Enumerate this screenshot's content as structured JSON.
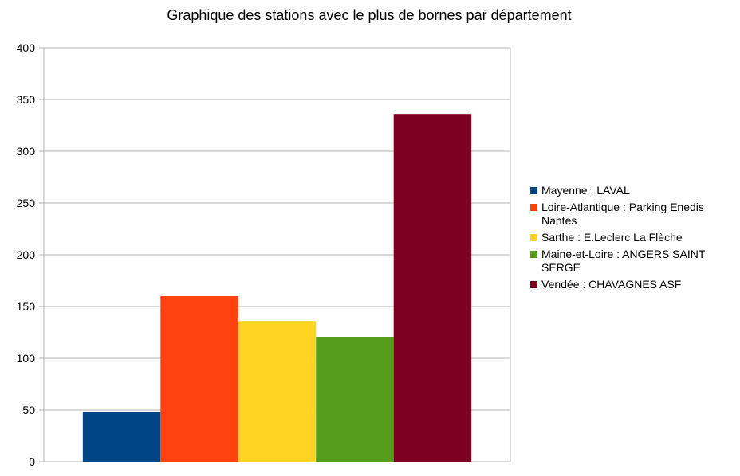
{
  "chart_data": {
    "type": "bar",
    "title": "Graphique des stations avec le plus de bornes par département",
    "xlabel": "",
    "ylabel": "",
    "ylim": [
      0,
      400
    ],
    "yticks": [
      0,
      50,
      100,
      150,
      200,
      250,
      300,
      350,
      400
    ],
    "grid": true,
    "legend_position": "right",
    "series": [
      {
        "name": "Mayenne : LAVAL",
        "value": 48,
        "color": "#004586"
      },
      {
        "name": "Loire-Atlantique : Parking Enedis Nantes",
        "value": 160,
        "color": "#ff420e"
      },
      {
        "name": "Sarthe : E.Leclerc La Flèche",
        "value": 136,
        "color": "#ffd320"
      },
      {
        "name": "Maine-et-Loire : ANGERS SAINT SERGE",
        "value": 120,
        "color": "#579d1c"
      },
      {
        "name": "Vendée : CHAVAGNES ASF",
        "value": 336,
        "color": "#7e0021"
      }
    ]
  }
}
